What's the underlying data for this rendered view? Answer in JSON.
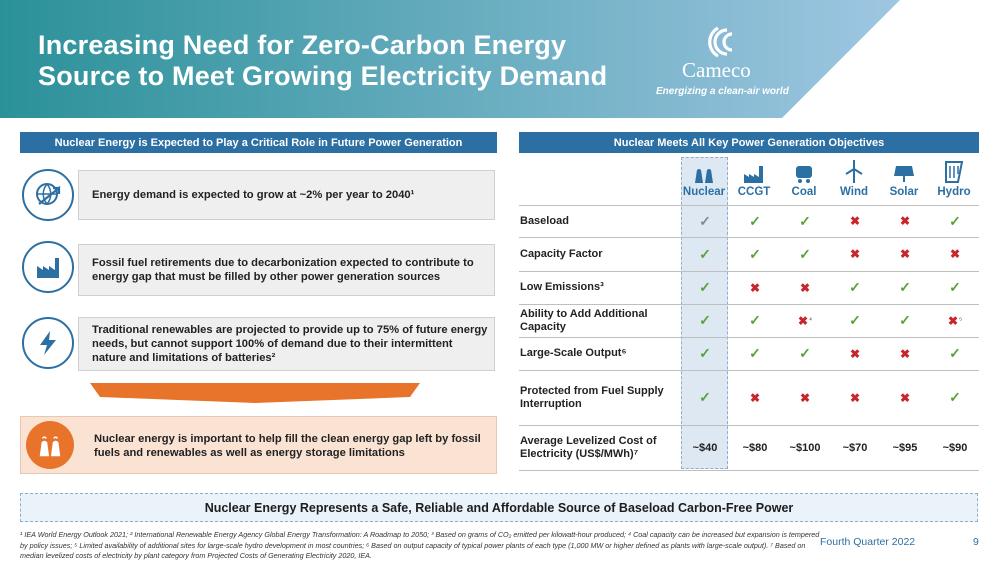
{
  "header": {
    "title_line1": "Increasing Need for Zero-Carbon Energy",
    "title_line2": "Source to Meet Growing Electricity Demand",
    "logo_name": "Cameco",
    "logo_tagline": "Energizing a clean-air world",
    "colors": {
      "gradient_start": "#2b9199",
      "gradient_end": "#9fc6e2"
    }
  },
  "left": {
    "banner": "Nuclear Energy is Expected to Play a Critical Role in Future Power Generation",
    "items": [
      {
        "icon": "globe-arrow-icon",
        "text": "Energy demand is expected to grow at ~2% per year to 2040¹"
      },
      {
        "icon": "factory-icon",
        "text": "Fossil fuel retirements due to decarbonization expected to contribute to energy gap that must be filled by other power generation sources"
      },
      {
        "icon": "lightning-icon",
        "text": "Traditional renewables are projected to provide up to 75% of future energy needs, but cannot support 100% of demand due to their intermittent nature and limitations of batteries²"
      }
    ],
    "highlight": {
      "icon": "nuclear-plant-icon",
      "text": "Nuclear energy is important to help fill the clean energy gap left by fossil fuels and renewables as well as energy storage limitations"
    }
  },
  "right": {
    "banner": "Nuclear Meets All Key Power Generation Objectives",
    "columns": [
      "Nuclear",
      "CCGT",
      "Coal",
      "Wind",
      "Solar",
      "Hydro"
    ],
    "rows": [
      {
        "label": "Baseload",
        "cells": [
          "check-grey",
          "check",
          "check",
          "cross",
          "cross",
          "check"
        ]
      },
      {
        "label": "Capacity Factor",
        "cells": [
          "check",
          "check",
          "check",
          "cross",
          "cross",
          "cross"
        ]
      },
      {
        "label": "Low Emissions³",
        "cells": [
          "check",
          "cross",
          "cross",
          "check",
          "check",
          "check"
        ]
      },
      {
        "label": "Ability to Add Additional Capacity",
        "cells": [
          "check",
          "check",
          "cross⁴",
          "check",
          "check",
          "cross⁵"
        ]
      },
      {
        "label": "Large-Scale Output⁶",
        "cells": [
          "check",
          "check",
          "check",
          "cross",
          "cross",
          "check"
        ]
      },
      {
        "label": "Protected from Fuel Supply Interruption",
        "cells": [
          "check",
          "cross",
          "cross",
          "cross",
          "cross",
          "check"
        ]
      },
      {
        "label": "Average Levelized Cost of Electricity (US$/MWh)⁷",
        "cells": [
          "~$40",
          "~$80",
          "~$100",
          "~$70",
          "~$95",
          "~$90"
        ]
      }
    ]
  },
  "bottom_banner": "Nuclear Energy Represents a Safe, Reliable and Affordable Source of Baseload Carbon-Free Power",
  "footnote": "¹ IEA World Energy Outlook 2021; ² International Renewable Energy Agency Global Energy Transformation: A Roadmap to 2050; ³ Based on grams of CO₂ emitted per kilowatt-hour produced; ⁴ Coal capacity can be increased but expansion is tempered by policy issues; ⁵ Limited availability of additional sites for large-scale hydro development in most countries; ⁶ Based on output capacity of typical power plants of each type (1,000 MW or higher defined as plants with large-scale output). ⁷ Based on median levelized costs of electricity by plant category from Projected Costs of Generating Electricity 2020, IEA.",
  "footer": {
    "period": "Fourth Quarter 2022",
    "page": "9"
  }
}
